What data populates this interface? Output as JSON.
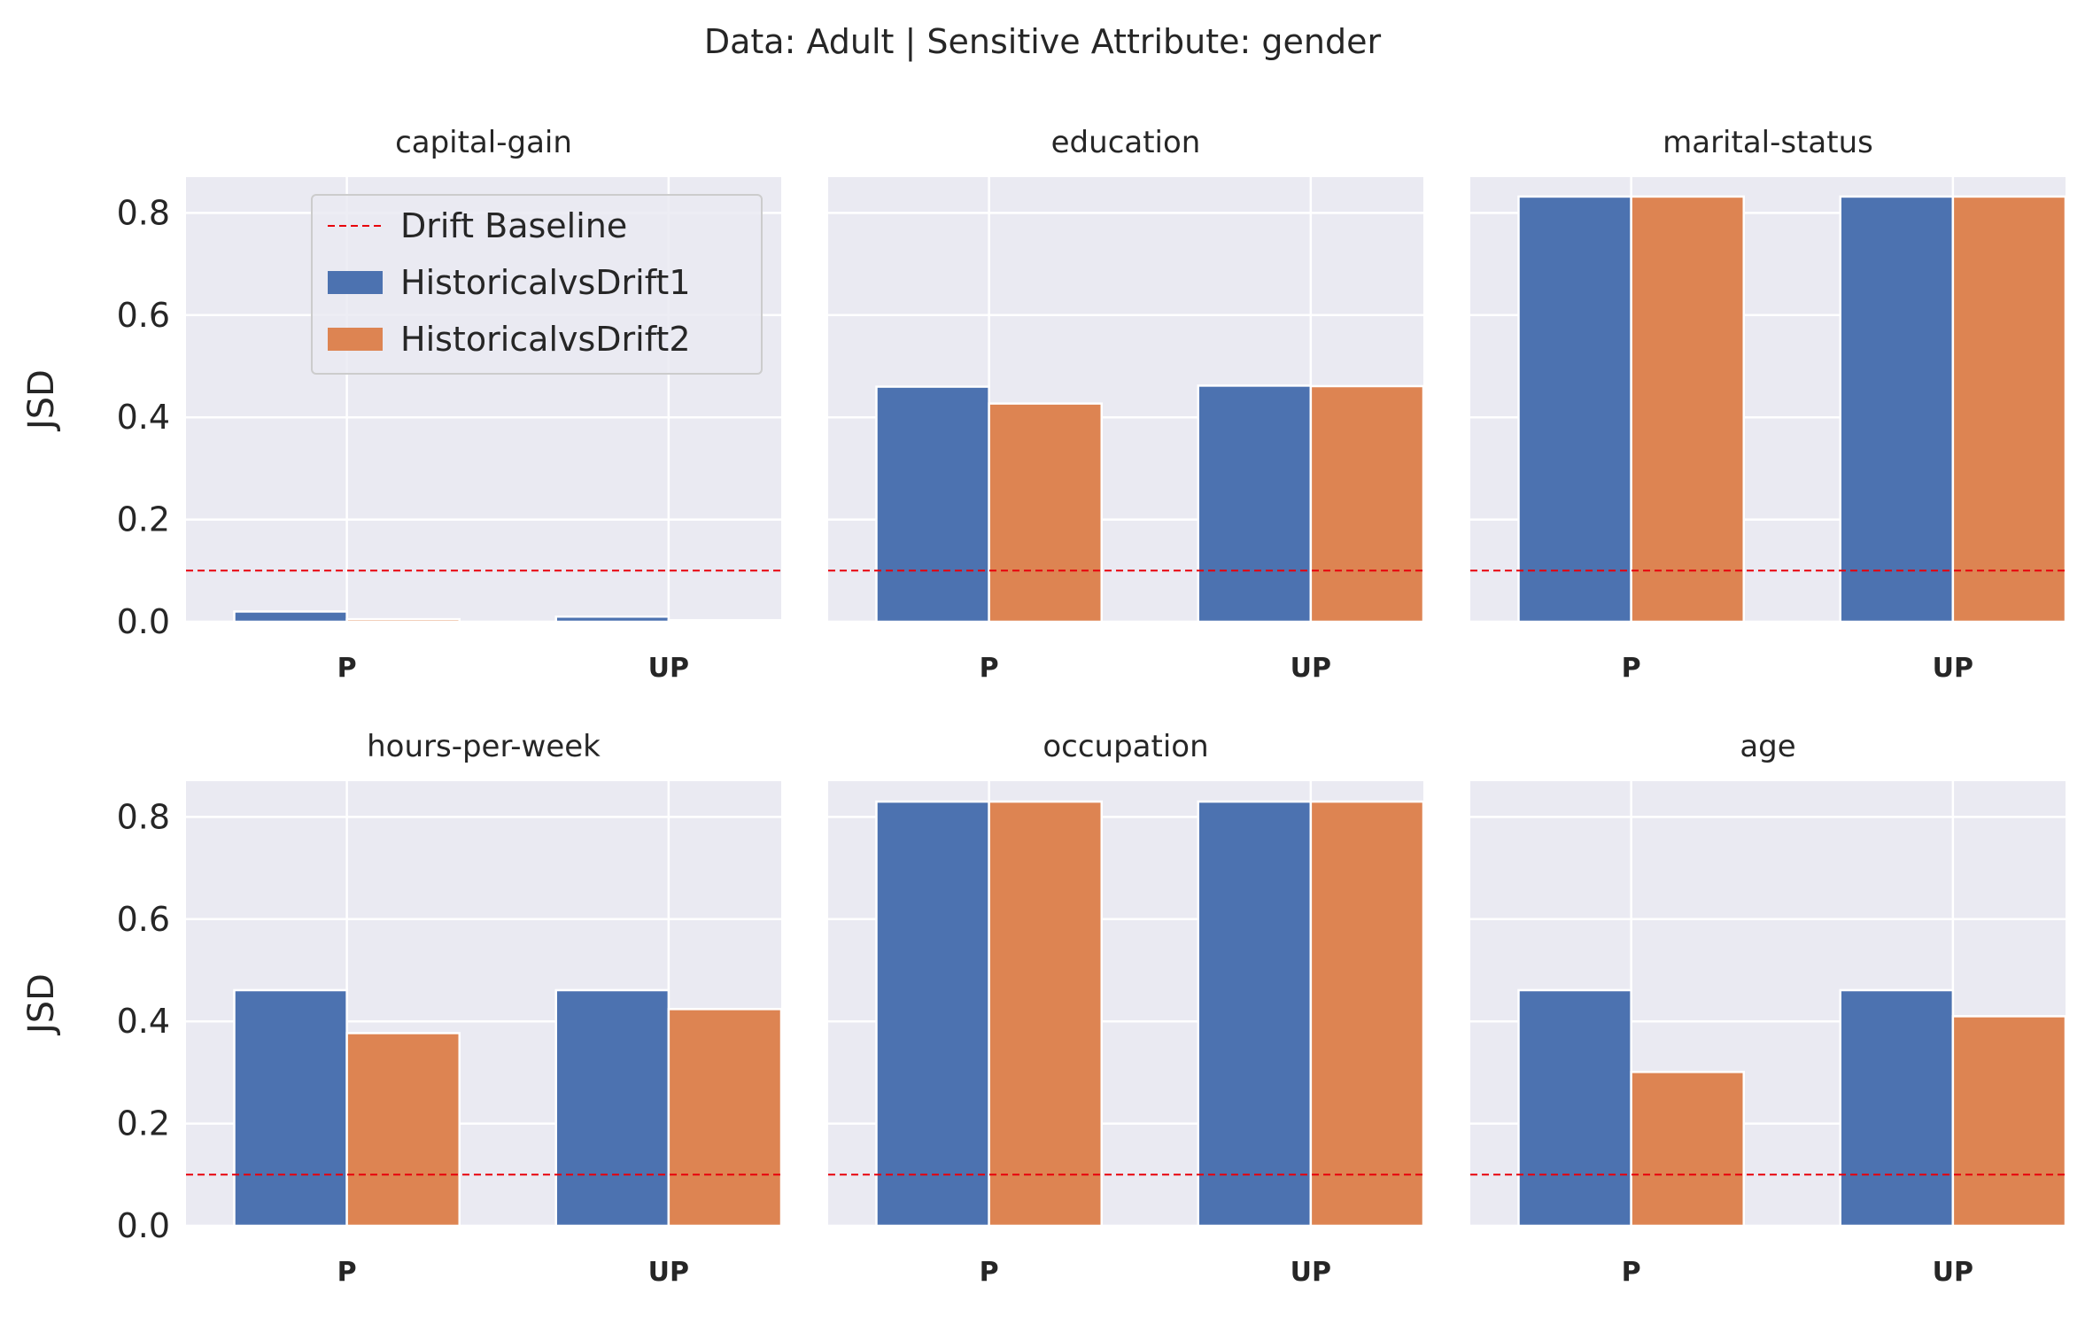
{
  "figure": {
    "suptitle": "Data: Adult | Sensitive Attribute: gender",
    "ylabel": "JSD"
  },
  "legend": {
    "placement": "upper-right of first panel",
    "entries": [
      {
        "label": "Drift Baseline",
        "kind": "line",
        "color": "#e8000b"
      },
      {
        "label": "HistoricalvsDrift1",
        "kind": "patch",
        "color": "#4c72b0"
      },
      {
        "label": "HistoricalvsDrift2",
        "kind": "patch",
        "color": "#dd8452"
      }
    ]
  },
  "colors": {
    "background": "#eaeaf2",
    "grid": "#ffffff",
    "series1": "#4c72b0",
    "series2": "#dd8452",
    "baseline": "#e8000b"
  },
  "chart_data": [
    {
      "type": "bar",
      "title": "capital-gain",
      "categories": [
        "P",
        "UP"
      ],
      "series": [
        {
          "name": "HistoricalvsDrift1",
          "values": [
            0.02,
            0.01
          ]
        },
        {
          "name": "HistoricalvsDrift2",
          "values": [
            0.005,
            0.003
          ]
        }
      ],
      "baseline": 0.1,
      "ylim": [
        0,
        0.87
      ],
      "yticks": [
        "0.0",
        "0.2",
        "0.4",
        "0.6",
        "0.8"
      ],
      "grid": true
    },
    {
      "type": "bar",
      "title": "education",
      "categories": [
        "P",
        "UP"
      ],
      "series": [
        {
          "name": "HistoricalvsDrift1",
          "values": [
            0.46,
            0.462
          ]
        },
        {
          "name": "HistoricalvsDrift2",
          "values": [
            0.427,
            0.461
          ]
        }
      ],
      "baseline": 0.1,
      "ylim": [
        0,
        0.87
      ],
      "yticks": [
        "0.0",
        "0.2",
        "0.4",
        "0.6",
        "0.8"
      ],
      "grid": true
    },
    {
      "type": "bar",
      "title": "marital-status",
      "categories": [
        "P",
        "UP"
      ],
      "series": [
        {
          "name": "HistoricalvsDrift1",
          "values": [
            0.832,
            0.832
          ]
        },
        {
          "name": "HistoricalvsDrift2",
          "values": [
            0.832,
            0.832
          ]
        }
      ],
      "baseline": 0.1,
      "ylim": [
        0,
        0.87
      ],
      "yticks": [
        "0.0",
        "0.2",
        "0.4",
        "0.6",
        "0.8"
      ],
      "grid": true
    },
    {
      "type": "bar",
      "title": "hours-per-week",
      "categories": [
        "P",
        "UP"
      ],
      "series": [
        {
          "name": "HistoricalvsDrift1",
          "values": [
            0.461,
            0.461
          ]
        },
        {
          "name": "HistoricalvsDrift2",
          "values": [
            0.377,
            0.424
          ]
        }
      ],
      "baseline": 0.1,
      "ylim": [
        0,
        0.87
      ],
      "yticks": [
        "0.0",
        "0.2",
        "0.4",
        "0.6",
        "0.8"
      ],
      "grid": true
    },
    {
      "type": "bar",
      "title": "occupation",
      "categories": [
        "P",
        "UP"
      ],
      "series": [
        {
          "name": "HistoricalvsDrift1",
          "values": [
            0.83,
            0.83
          ]
        },
        {
          "name": "HistoricalvsDrift2",
          "values": [
            0.83,
            0.83
          ]
        }
      ],
      "baseline": 0.1,
      "ylim": [
        0,
        0.87
      ],
      "yticks": [
        "0.0",
        "0.2",
        "0.4",
        "0.6",
        "0.8"
      ],
      "grid": true
    },
    {
      "type": "bar",
      "title": "age",
      "categories": [
        "P",
        "UP"
      ],
      "series": [
        {
          "name": "HistoricalvsDrift1",
          "values": [
            0.461,
            0.461
          ]
        },
        {
          "name": "HistoricalvsDrift2",
          "values": [
            0.301,
            0.41
          ]
        }
      ],
      "baseline": 0.1,
      "ylim": [
        0,
        0.87
      ],
      "yticks": [
        "0.0",
        "0.2",
        "0.4",
        "0.6",
        "0.8"
      ],
      "grid": true
    }
  ]
}
